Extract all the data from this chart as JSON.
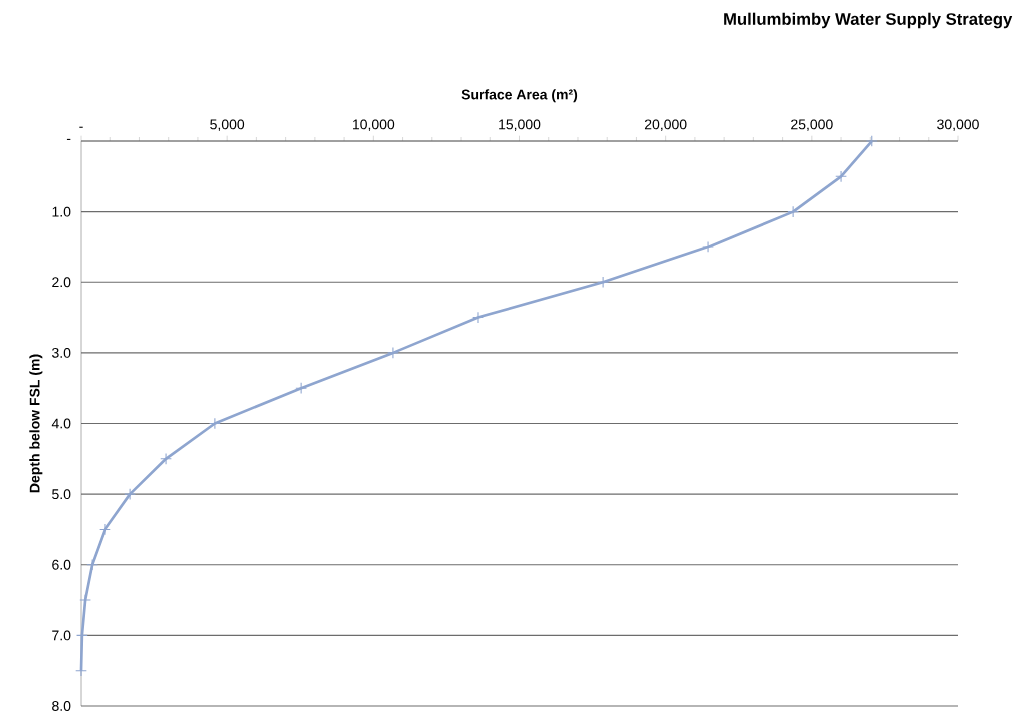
{
  "chart_data": {
    "type": "line",
    "title": "Mullumbimby Water Supply Strategy",
    "xlabel": "Surface Area (m²)",
    "ylabel": "Depth below FSL (m)",
    "x": [
      27050,
      26000,
      24360,
      21450,
      17860,
      13580,
      10670,
      7530,
      4580,
      2910,
      1680,
      820,
      380,
      140,
      30,
      0
    ],
    "series": [
      {
        "color": "#8ea5cf",
        "values": [
          0,
          0.5,
          1.0,
          1.5,
          2.0,
          2.5,
          3.0,
          3.5,
          4.0,
          4.5,
          5.0,
          5.5,
          6.0,
          6.5,
          7.0,
          7.5
        ]
      }
    ],
    "xlim": [
      0,
      30000
    ],
    "xticks": [
      {
        "value": 0,
        "label": "-"
      },
      {
        "value": 5000,
        "label": "5,000"
      },
      {
        "value": 10000,
        "label": "10,000"
      },
      {
        "value": 15000,
        "label": "15,000"
      },
      {
        "value": 20000,
        "label": "20,000"
      },
      {
        "value": 25000,
        "label": "25,000"
      },
      {
        "value": 30000,
        "label": "30,000"
      }
    ],
    "ylim": [
      8,
      0
    ],
    "yticks": [
      {
        "value": 0,
        "label": "-"
      },
      {
        "value": 1,
        "label": "1.0"
      },
      {
        "value": 2,
        "label": "2.0"
      },
      {
        "value": 3,
        "label": "3.0"
      },
      {
        "value": 4,
        "label": "4.0"
      },
      {
        "value": 5,
        "label": "5.0"
      },
      {
        "value": 6,
        "label": "6.0"
      },
      {
        "value": 7,
        "label": "7.0"
      },
      {
        "value": 8,
        "label": "8.0"
      }
    ],
    "grid": "y",
    "marker": "cross",
    "line_style": "solid"
  }
}
